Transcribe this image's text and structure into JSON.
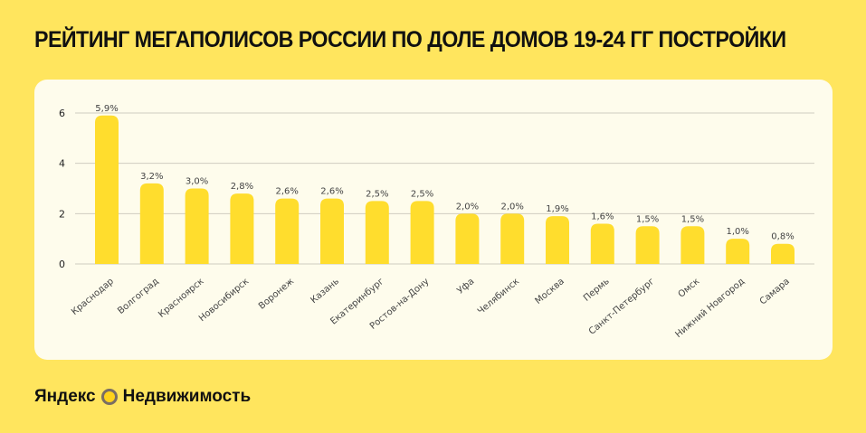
{
  "title": "РЕЙТИНГ МЕГАПОЛИСОВ РОССИИ ПО ДОЛЕ ДОМОВ 19-24 ГГ ПОСТРОЙКИ",
  "brand": {
    "left": "Яндекс",
    "right": "Недвижимость",
    "icon": "yandex-realty-logo-icon"
  },
  "colors": {
    "background": "#FFE55E",
    "card": "#FEFCEC",
    "bar": "#FFDD2D",
    "grid": "#CFCCC0"
  },
  "chart_data": {
    "type": "bar",
    "title": "РЕЙТИНГ МЕГАПОЛИСОВ РОССИИ ПО ДОЛЕ ДОМОВ 19-24 ГГ ПОСТРОЙКИ",
    "categories": [
      "Краснодар",
      "Волгоград",
      "Красноярск",
      "Новосибирск",
      "Воронеж",
      "Казань",
      "Екатеринбург",
      "Ростов-на-Дону",
      "Уфа",
      "Челябинск",
      "Москва",
      "Пермь",
      "Санкт-Петербург",
      "Омск",
      "Нижний Новгород",
      "Самара"
    ],
    "values": [
      5.9,
      3.2,
      3.0,
      2.8,
      2.6,
      2.6,
      2.5,
      2.5,
      2.0,
      2.0,
      1.9,
      1.6,
      1.5,
      1.5,
      1.0,
      0.8
    ],
    "data_labels": [
      "5,9%",
      "3,2%",
      "3,0%",
      "2,8%",
      "2,6%",
      "2,6%",
      "2,5%",
      "2,5%",
      "2,0%",
      "2,0%",
      "1,9%",
      "1,6%",
      "1,5%",
      "1,5%",
      "1,0%",
      "0,8%"
    ],
    "yticks": [
      0,
      2,
      4,
      6
    ],
    "ylim": [
      0,
      6
    ],
    "xlabel": "",
    "ylabel": "",
    "grid": true,
    "legend": "none"
  }
}
